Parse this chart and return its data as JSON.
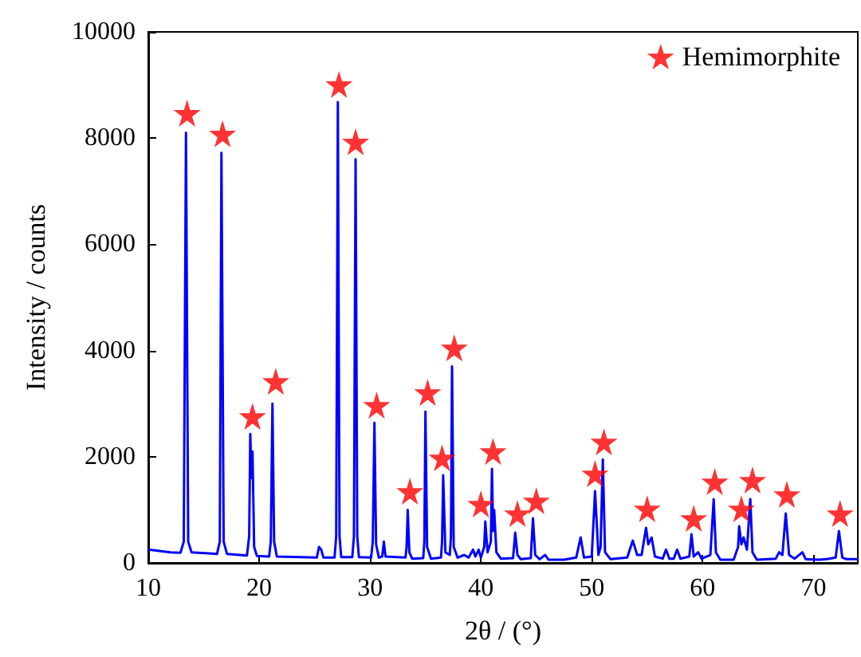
{
  "chart_data": {
    "type": "line",
    "xlabel": "2θ / (°)",
    "ylabel": "Intensity / counts",
    "xlim": [
      10,
      74
    ],
    "xticks": [
      10,
      20,
      30,
      40,
      50,
      60,
      70
    ],
    "ylim": [
      0,
      10000
    ],
    "yticks": [
      0,
      2000,
      4000,
      6000,
      8000,
      10000
    ],
    "grid": false,
    "legend": "top right",
    "series": [
      {
        "color": "#0000ff",
        "marker": "none",
        "x": [
          10,
          12,
          12.9,
          13.2,
          13.4,
          13.6,
          13.9,
          16.2,
          16.45,
          16.6,
          16.8,
          17.1,
          18.9,
          19.1,
          19.2,
          19.3,
          19.4,
          19.55,
          19.8,
          20.9,
          21.05,
          21.2,
          21.35,
          21.6,
          25.2,
          25.4,
          25.6,
          25.8,
          26.8,
          26.95,
          27.1,
          27.25,
          27.4,
          28.4,
          28.55,
          28.7,
          28.85,
          29.0,
          30.1,
          30.25,
          30.4,
          30.55,
          30.8,
          31.1,
          31.25,
          31.4,
          33.2,
          33.3,
          33.4,
          33.55,
          33.8,
          34.8,
          34.9,
          35.0,
          35.15,
          35.5,
          36.4,
          36.5,
          36.6,
          36.8,
          37.2,
          37.3,
          37.4,
          37.55,
          37.9,
          38.5,
          38.9,
          39.3,
          39.5,
          39.8,
          40.0,
          40.3,
          40.4,
          40.6,
          40.9,
          41.0,
          41.1,
          41.2,
          41.4,
          41.8,
          42.9,
          43.1,
          43.3,
          43.6,
          44.5,
          44.7,
          44.9,
          45.3,
          45.8,
          46.1,
          46.8,
          47.5,
          48.6,
          49.0,
          49.3,
          50.0,
          50.3,
          50.6,
          50.8,
          51.0,
          51.2,
          51.7,
          53.2,
          53.7,
          54.1,
          54.5,
          54.9,
          55.1,
          55.4,
          55.7,
          56.4,
          56.7,
          57.0,
          57.4,
          57.7,
          58.0,
          58.8,
          59.0,
          59.2,
          59.6,
          59.9,
          60.7,
          61.0,
          61.2,
          61.6,
          62.8,
          63.2,
          63.3,
          63.5,
          63.7,
          64.0,
          64.3,
          64.5,
          64.9,
          66.6,
          66.9,
          67.2,
          67.5,
          67.8,
          68.3,
          69.0,
          69.3,
          70.5,
          71.2,
          72.0,
          72.3,
          72.6,
          73.0,
          74
        ],
        "values": [
          250,
          200,
          190,
          400,
          8100,
          400,
          200,
          170,
          400,
          7720,
          400,
          170,
          140,
          500,
          2430,
          1600,
          2100,
          300,
          130,
          120,
          400,
          3000,
          400,
          120,
          100,
          300,
          250,
          100,
          100,
          500,
          8680,
          500,
          110,
          110,
          500,
          7600,
          500,
          110,
          100,
          400,
          2640,
          350,
          100,
          120,
          400,
          120,
          100,
          300,
          1000,
          200,
          80,
          90,
          400,
          2850,
          300,
          80,
          100,
          400,
          1650,
          200,
          150,
          500,
          3700,
          300,
          100,
          150,
          100,
          250,
          120,
          250,
          100,
          300,
          780,
          200,
          400,
          1770,
          600,
          1000,
          200,
          80,
          90,
          570,
          150,
          70,
          90,
          840,
          150,
          70,
          150,
          60,
          60,
          60,
          100,
          480,
          100,
          120,
          1350,
          150,
          300,
          1950,
          200,
          70,
          100,
          420,
          150,
          150,
          660,
          350,
          480,
          120,
          80,
          250,
          80,
          80,
          250,
          80,
          120,
          540,
          120,
          200,
          80,
          150,
          1200,
          200,
          60,
          60,
          300,
          690,
          350,
          480,
          250,
          1200,
          200,
          60,
          80,
          200,
          150,
          930,
          150,
          80,
          200,
          70,
          60,
          70,
          100,
          600,
          100,
          70,
          70
        ]
      },
      {
        "type": "scatter",
        "name": "Hemimorphite",
        "color": "#ff0000",
        "marker": "star",
        "x": [
          13.5,
          16.7,
          19.4,
          21.5,
          27.2,
          28.7,
          30.6,
          33.6,
          35.2,
          36.5,
          37.6,
          40.0,
          41.1,
          43.3,
          45.0,
          50.3,
          51.1,
          55.0,
          59.2,
          61.1,
          63.5,
          64.5,
          67.6,
          72.4
        ],
        "values": [
          8470,
          8080,
          2760,
          3420,
          9010,
          7930,
          2970,
          1350,
          3210,
          1980,
          4050,
          1110,
          2100,
          930,
          1170,
          1680,
          2280,
          1020,
          840,
          1530,
          1020,
          1560,
          1290,
          930
        ]
      }
    ]
  }
}
